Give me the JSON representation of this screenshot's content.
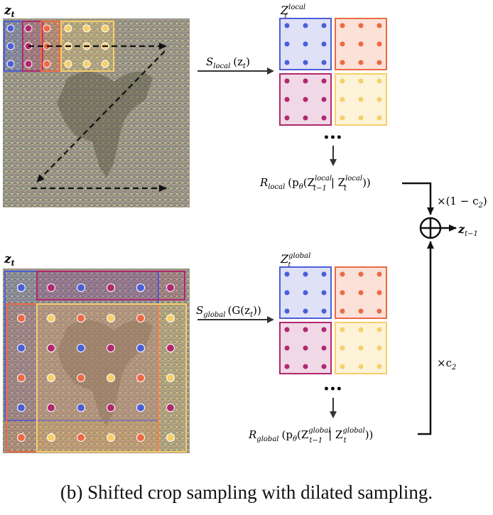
{
  "colors": {
    "blue": "#4a5fd6",
    "blue_fill": "#dfe1f7",
    "orange": "#ec6a44",
    "orange_fill": "#fbe1d8",
    "magenta": "#b0286e",
    "magenta_fill": "#f0d8e6",
    "yellow": "#f7cf6a",
    "yellow_fill": "#fdf3d8",
    "arrow": "#333333"
  },
  "top": {
    "image_label": "z",
    "image_label_sub": "t",
    "grid_label_main": "Z",
    "grid_label_sub": "t",
    "grid_label_sup": "local",
    "sample_op": "S",
    "sample_op_sub": "local",
    "sample_arg": "(z",
    "sample_arg_sub": "t",
    "sample_arg_close": ")",
    "ellipsis": "•••",
    "recon_label": "R",
    "recon_sub": "local",
    "recon_body_open": "(p",
    "recon_theta": "θ",
    "recon_z1": "(Z",
    "recon_z1_sub": "t−1",
    "recon_z1_sup": "local",
    "recon_bar": "| Z",
    "recon_z2_sub": "t",
    "recon_z2_sup": "local",
    "recon_close": "))",
    "weight": "×(1 − c",
    "weight_sub": "2",
    "weight_close": ")"
  },
  "bottom": {
    "image_label": "z",
    "image_label_sub": "t",
    "grid_label_main": "Z",
    "grid_label_sub": "t",
    "grid_label_sup": "global",
    "sample_op": "S",
    "sample_op_sub": "global",
    "sample_arg": "(G(z",
    "sample_arg_sub": "t",
    "sample_arg_close": "))",
    "ellipsis": "•••",
    "recon_label": "R",
    "recon_sub": "global",
    "recon_body_open": "(p",
    "recon_theta": "θ",
    "recon_z1": "(Z",
    "recon_z1_sub": "t−1",
    "recon_z1_sup": "global",
    "recon_bar": "| Z",
    "recon_z2_sub": "t",
    "recon_z2_sup": "global",
    "recon_close": "))",
    "weight": "×c",
    "weight_sub": "2"
  },
  "output": {
    "symbol": "⊕",
    "label": "z",
    "label_sub": "t−1"
  },
  "caption": "(b) Shifted crop sampling with dilated sampling."
}
